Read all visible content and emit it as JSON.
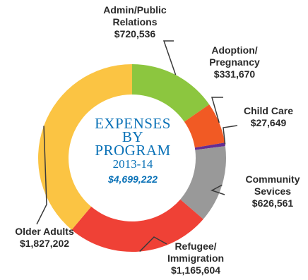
{
  "chart_data": {
    "type": "pie",
    "title_lines": [
      "EXPENSES",
      "BY PROGRAM",
      "2013-14"
    ],
    "total": "$4,699,222",
    "slices": [
      {
        "key": "admin",
        "name_lines": [
          "Admin/Public",
          "Relations"
        ],
        "value_label": "$720,536",
        "value": 720536,
        "color": "#8cc63f"
      },
      {
        "key": "adoption",
        "name_lines": [
          "Adoption/",
          "Pregnancy"
        ],
        "value_label": "$331,670",
        "value": 331670,
        "color": "#f15a24"
      },
      {
        "key": "childcare",
        "name_lines": [
          "Child Care"
        ],
        "value_label": "$27,649",
        "value": 27649,
        "color": "#662d91"
      },
      {
        "key": "community",
        "name_lines": [
          "Community",
          "Sevices"
        ],
        "value_label": "$626,561",
        "value": 626561,
        "color": "#999999"
      },
      {
        "key": "refugee",
        "name_lines": [
          "Refugee/",
          "Immigration"
        ],
        "value_label": "$1,165,604",
        "value": 1165604,
        "color": "#ef4136"
      },
      {
        "key": "older",
        "name_lines": [
          "Older Adults"
        ],
        "value_label": "$1,827,202",
        "value": 1827202,
        "color": "#fbc443"
      }
    ]
  }
}
